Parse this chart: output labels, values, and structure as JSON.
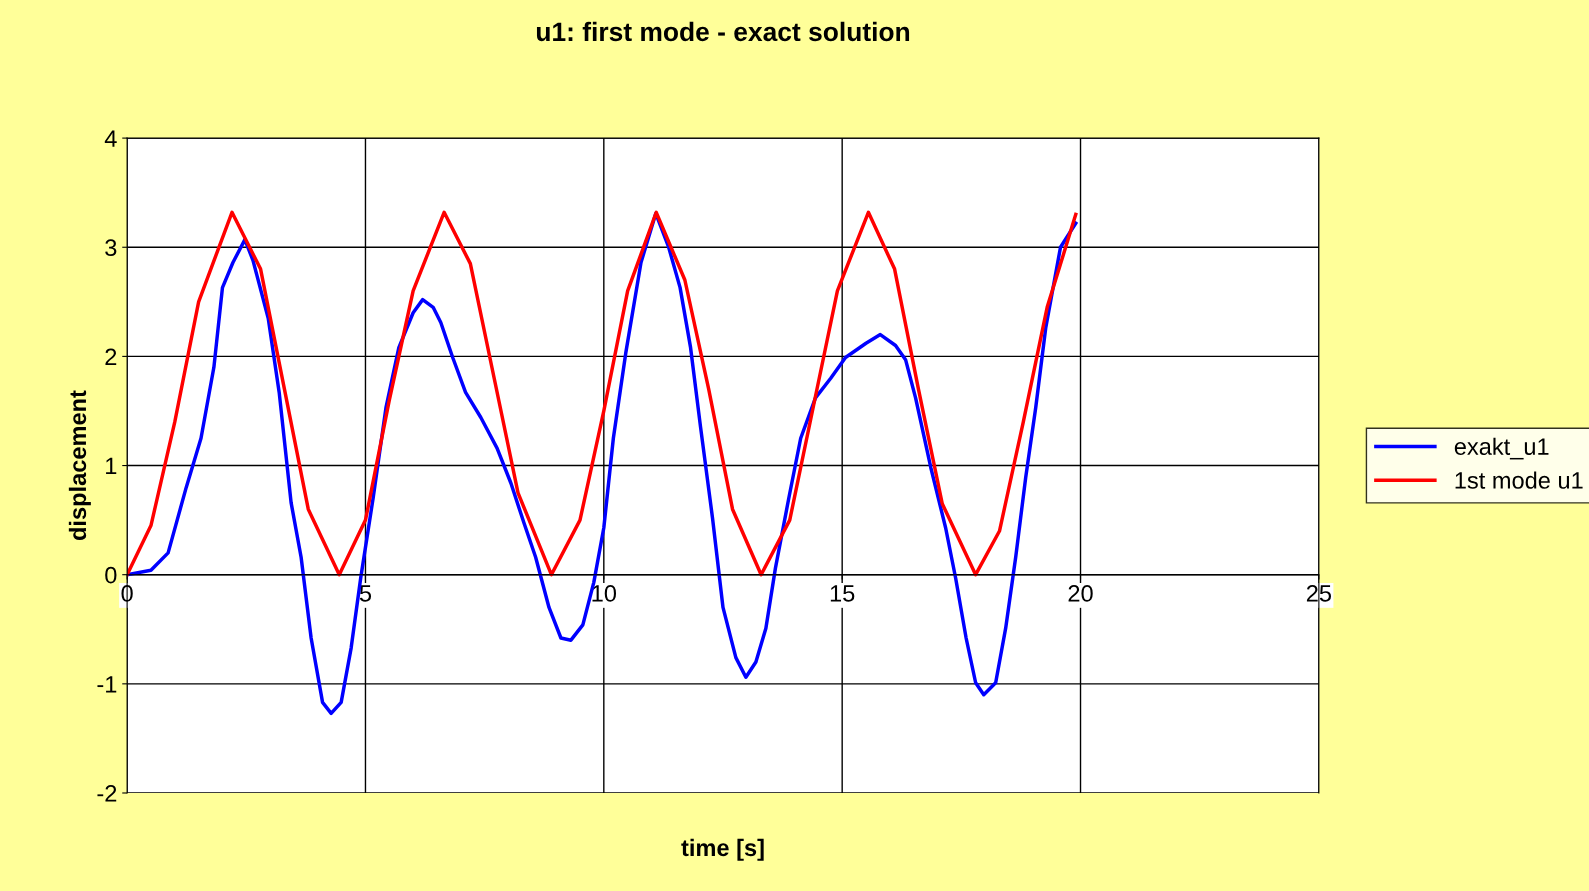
{
  "chart_data": {
    "type": "line",
    "title": "u1: first mode - exact solution",
    "xlabel": "time [s]",
    "ylabel": "displacement",
    "xlim": [
      0,
      25
    ],
    "xticks": [
      0,
      5,
      10,
      15,
      20,
      25
    ],
    "ylim": [
      -2,
      4
    ],
    "yticks": [
      -2,
      -1,
      0,
      1,
      2,
      3,
      4
    ],
    "grid": true,
    "legend": "right",
    "marker": "none",
    "line_style": "solid",
    "series": [
      {
        "name": "exakt_u1",
        "color": "#0000ff",
        "x": [
          0,
          0.5,
          0.86,
          1.24,
          1.55,
          1.82,
          2.0,
          2.22,
          2.47,
          2.64,
          2.96,
          3.19,
          3.44,
          3.65,
          3.86,
          4.1,
          4.28,
          4.49,
          4.7,
          4.9,
          5.16,
          5.43,
          5.7,
          6.0,
          6.2,
          6.42,
          6.58,
          6.83,
          7.1,
          7.42,
          7.76,
          8.05,
          8.32,
          8.57,
          8.85,
          9.1,
          9.31,
          9.56,
          9.79,
          10.0,
          10.2,
          10.46,
          10.78,
          11.09,
          11.36,
          11.6,
          11.82,
          12.03,
          12.28,
          12.5,
          12.77,
          12.98,
          13.19,
          13.4,
          13.6,
          13.88,
          14.13,
          14.44,
          14.76,
          15.07,
          15.5,
          15.8,
          16.12,
          16.33,
          16.54,
          16.86,
          17.17,
          17.38,
          17.6,
          17.8,
          17.97,
          18.22,
          18.43,
          18.64,
          18.85,
          19.06,
          19.27,
          19.58,
          19.9
        ],
        "values": [
          0,
          0.04,
          0.2,
          0.8,
          1.25,
          1.9,
          2.63,
          2.86,
          3.07,
          2.88,
          2.35,
          1.67,
          0.66,
          0.16,
          -0.58,
          -1.17,
          -1.27,
          -1.17,
          -0.67,
          -0.03,
          0.7,
          1.53,
          2.08,
          2.4,
          2.52,
          2.45,
          2.31,
          1.99,
          1.67,
          1.44,
          1.16,
          0.84,
          0.48,
          0.16,
          -0.3,
          -0.58,
          -0.6,
          -0.46,
          -0.07,
          0.43,
          1.25,
          2.03,
          2.86,
          3.31,
          3.0,
          2.63,
          2.08,
          1.35,
          0.52,
          -0.3,
          -0.76,
          -0.94,
          -0.8,
          -0.49,
          0.06,
          0.7,
          1.25,
          1.62,
          1.8,
          1.99,
          2.12,
          2.2,
          2.1,
          1.97,
          1.62,
          0.98,
          0.43,
          -0.03,
          -0.58,
          -0.99,
          -1.1,
          -0.99,
          -0.49,
          0.16,
          0.89,
          1.53,
          2.26,
          3.0,
          3.22
        ]
      },
      {
        "name": "1st mode u1",
        "color": "#ff0000",
        "x": [
          0,
          0.5,
          1.0,
          1.5,
          2.2,
          2.8,
          3.3,
          3.8,
          4.45,
          5.0,
          5.5,
          6.0,
          6.65,
          7.2,
          7.7,
          8.2,
          8.9,
          9.5,
          10.0,
          10.5,
          11.1,
          11.7,
          12.2,
          12.7,
          13.3,
          13.9,
          14.4,
          14.9,
          15.55,
          16.1,
          16.6,
          17.1,
          17.8,
          18.3,
          18.8,
          19.3,
          19.9
        ],
        "values": [
          0,
          0.45,
          1.4,
          2.5,
          3.32,
          2.8,
          1.7,
          0.6,
          0,
          0.5,
          1.6,
          2.6,
          3.32,
          2.85,
          1.8,
          0.75,
          0,
          0.5,
          1.5,
          2.6,
          3.32,
          2.7,
          1.7,
          0.6,
          0,
          0.5,
          1.55,
          2.6,
          3.32,
          2.8,
          1.7,
          0.65,
          0,
          0.4,
          1.4,
          2.45,
          3.3
        ]
      }
    ]
  }
}
